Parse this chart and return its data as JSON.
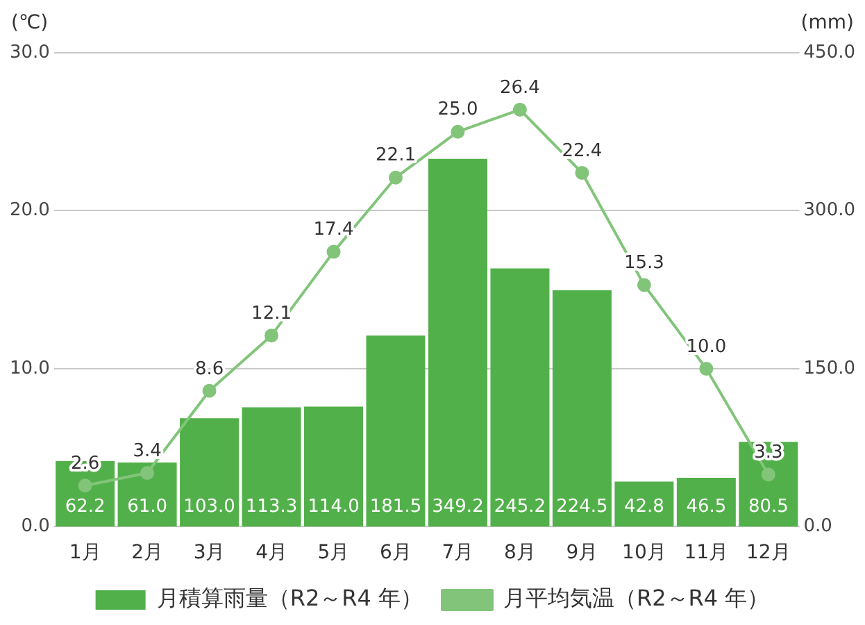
{
  "chart_data": {
    "type": "bar",
    "categories": [
      "1月",
      "2月",
      "3月",
      "4月",
      "5月",
      "6月",
      "7月",
      "8月",
      "9月",
      "10月",
      "11月",
      "12月"
    ],
    "ylabel": "(℃)",
    "y2label": "(mm)",
    "series": [
      {
        "name": "月積算雨量（R2～R4 年）",
        "axis": "y2",
        "color": "#52b04a",
        "values": [
          62.2,
          61.0,
          103.0,
          113.3,
          114.0,
          181.5,
          349.2,
          245.2,
          224.5,
          42.8,
          46.5,
          80.5
        ],
        "value_labels": [
          "62.2",
          "61.0",
          "103.0",
          "113.3",
          "114.0",
          "181.5",
          "349.2",
          "245.2",
          "224.5",
          "42.8",
          "46.5",
          "80.5"
        ]
      },
      {
        "name": "月平均気温（R2～R4 年）",
        "type": "line",
        "axis": "y",
        "color": "#82c57a",
        "marker": "circle",
        "values": [
          2.6,
          3.4,
          8.6,
          12.1,
          17.4,
          22.1,
          25.0,
          26.4,
          22.4,
          15.3,
          10.0,
          3.3
        ],
        "value_labels": [
          "2.6",
          "3.4",
          "8.6",
          "12.1",
          "17.4",
          "22.1",
          "25.0",
          "26.4",
          "22.4",
          "15.3",
          "10.0",
          "3.3"
        ]
      }
    ],
    "ylim": [
      0,
      30
    ],
    "yticks": [
      {
        "value": 0,
        "label": "0.0"
      },
      {
        "value": 10,
        "label": "10.0"
      },
      {
        "value": 20,
        "label": "20.0"
      },
      {
        "value": 30,
        "label": "30.0"
      }
    ],
    "y2lim": [
      0,
      450
    ],
    "y2ticks": [
      {
        "value": 0,
        "label": "0.0"
      },
      {
        "value": 150,
        "label": "150.0"
      },
      {
        "value": 300,
        "label": "300.0"
      },
      {
        "value": 450,
        "label": "450.0"
      }
    ],
    "grid": "y",
    "legend": "bottom"
  }
}
